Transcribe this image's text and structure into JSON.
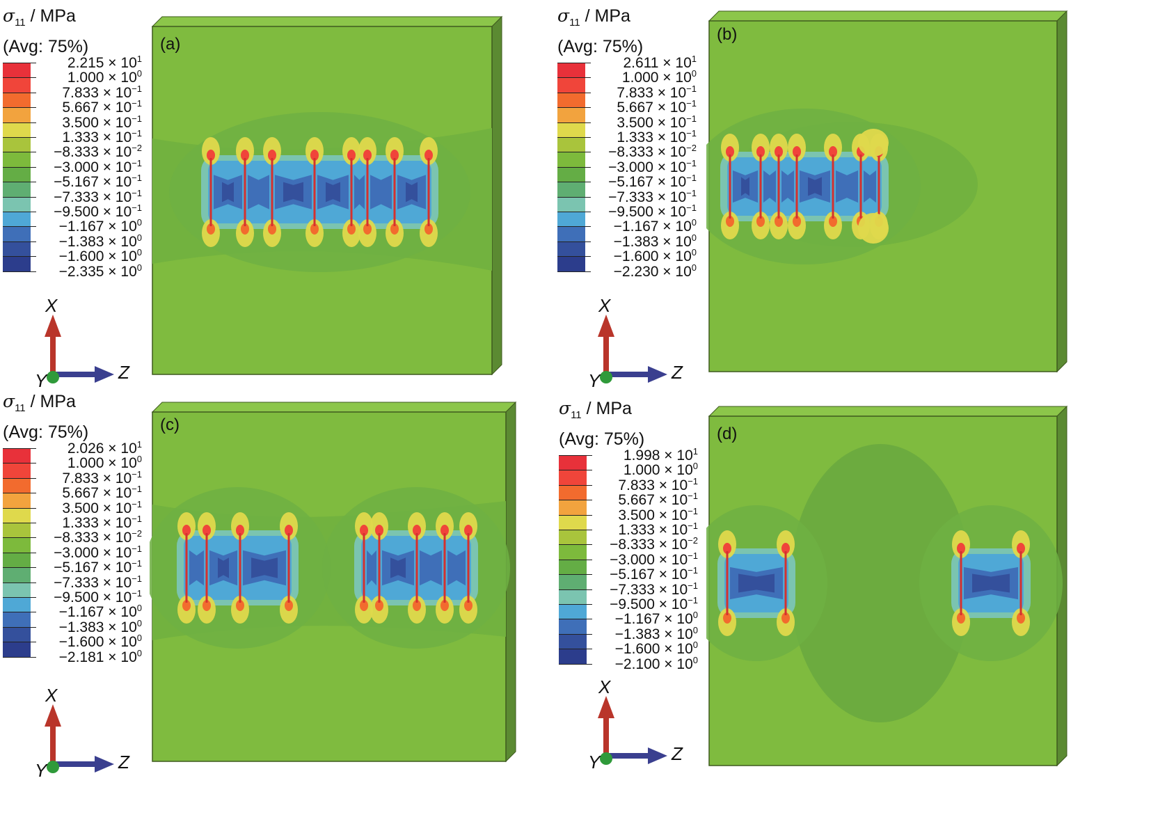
{
  "quantity": {
    "symbol": "σ",
    "subscript": "11",
    "unit": " / MPa",
    "averaging": "(Avg: 75%)"
  },
  "colors": [
    "#e8313a",
    "#f0453a",
    "#f26b2e",
    "#f2a33e",
    "#dfd94c",
    "#a9c43c",
    "#7dba3c",
    "#64ad45",
    "#5fae72",
    "#7bc4b0",
    "#4fa8d6",
    "#3f6fb8",
    "#34509c",
    "#2c3d8c"
  ],
  "background_green": "#7fbb3f",
  "triad": {
    "x": "X",
    "y": "Y",
    "z": "Z"
  },
  "panels": [
    {
      "id": "a",
      "label": "(a)",
      "legend": [
        [
          "2.215 × 10",
          "1"
        ],
        [
          "1.000 × 10",
          "0"
        ],
        [
          "7.833 × 10",
          "−1"
        ],
        [
          "5.667 × 10",
          "−1"
        ],
        [
          "3.500 × 10",
          "−1"
        ],
        [
          "1.333 × 10",
          "−1"
        ],
        [
          "−8.333 × 10",
          "−2"
        ],
        [
          "−3.000 × 10",
          "−1"
        ],
        [
          "−5.167 × 10",
          "−1"
        ],
        [
          "−7.333 × 10",
          "−1"
        ],
        [
          "−9.500 × 10",
          "−1"
        ],
        [
          "−1.167 × 10",
          "0"
        ],
        [
          "−1.383 × 10",
          "0"
        ],
        [
          "−1.600 × 10",
          "0"
        ],
        [
          "−2.335 × 10",
          "0"
        ]
      ],
      "cracks": 8
    },
    {
      "id": "b",
      "label": "(b)",
      "legend": [
        [
          "2.611 × 10",
          "1"
        ],
        [
          "1.000 × 10",
          "0"
        ],
        [
          "7.833 × 10",
          "−1"
        ],
        [
          "5.667 × 10",
          "−1"
        ],
        [
          "3.500 × 10",
          "−1"
        ],
        [
          "1.333 × 10",
          "−1"
        ],
        [
          "−8.333 × 10",
          "−2"
        ],
        [
          "−3.000 × 10",
          "−1"
        ],
        [
          "−5.167 × 10",
          "−1"
        ],
        [
          "−7.333 × 10",
          "−1"
        ],
        [
          "−9.500 × 10",
          "−1"
        ],
        [
          "−1.167 × 10",
          "0"
        ],
        [
          "−1.383 × 10",
          "0"
        ],
        [
          "−1.600 × 10",
          "0"
        ],
        [
          "−2.230 × 10",
          "0"
        ]
      ],
      "cracks": 8
    },
    {
      "id": "c",
      "label": "(c)",
      "legend": [
        [
          "2.026 × 10",
          "1"
        ],
        [
          "1.000 × 10",
          "0"
        ],
        [
          "7.833 × 10",
          "−1"
        ],
        [
          "5.667 × 10",
          "−1"
        ],
        [
          "3.500 × 10",
          "−1"
        ],
        [
          "1.333 × 10",
          "−1"
        ],
        [
          "−8.333 × 10",
          "−2"
        ],
        [
          "−3.000 × 10",
          "−1"
        ],
        [
          "−5.167 × 10",
          "−1"
        ],
        [
          "−7.333 × 10",
          "−1"
        ],
        [
          "−9.500 × 10",
          "−1"
        ],
        [
          "−1.167 × 10",
          "0"
        ],
        [
          "−1.383 × 10",
          "0"
        ],
        [
          "−1.600 × 10",
          "0"
        ],
        [
          "−2.181 × 10",
          "0"
        ]
      ],
      "cracks": 8
    },
    {
      "id": "d",
      "label": "(d)",
      "legend": [
        [
          "1.998 × 10",
          "1"
        ],
        [
          "1.000 × 10",
          "0"
        ],
        [
          "7.833 × 10",
          "−1"
        ],
        [
          "5.667 × 10",
          "−1"
        ],
        [
          "3.500 × 10",
          "−1"
        ],
        [
          "1.333 × 10",
          "−1"
        ],
        [
          "−8.333 × 10",
          "−2"
        ],
        [
          "−3.000 × 10",
          "−1"
        ],
        [
          "−5.167 × 10",
          "−1"
        ],
        [
          "−7.333 × 10",
          "−1"
        ],
        [
          "−9.500 × 10",
          "−1"
        ],
        [
          "−1.167 × 10",
          "0"
        ],
        [
          "−1.383 × 10",
          "0"
        ],
        [
          "−1.600 × 10",
          "0"
        ],
        [
          "−2.100 × 10",
          "0"
        ]
      ],
      "cracks": 4
    }
  ]
}
